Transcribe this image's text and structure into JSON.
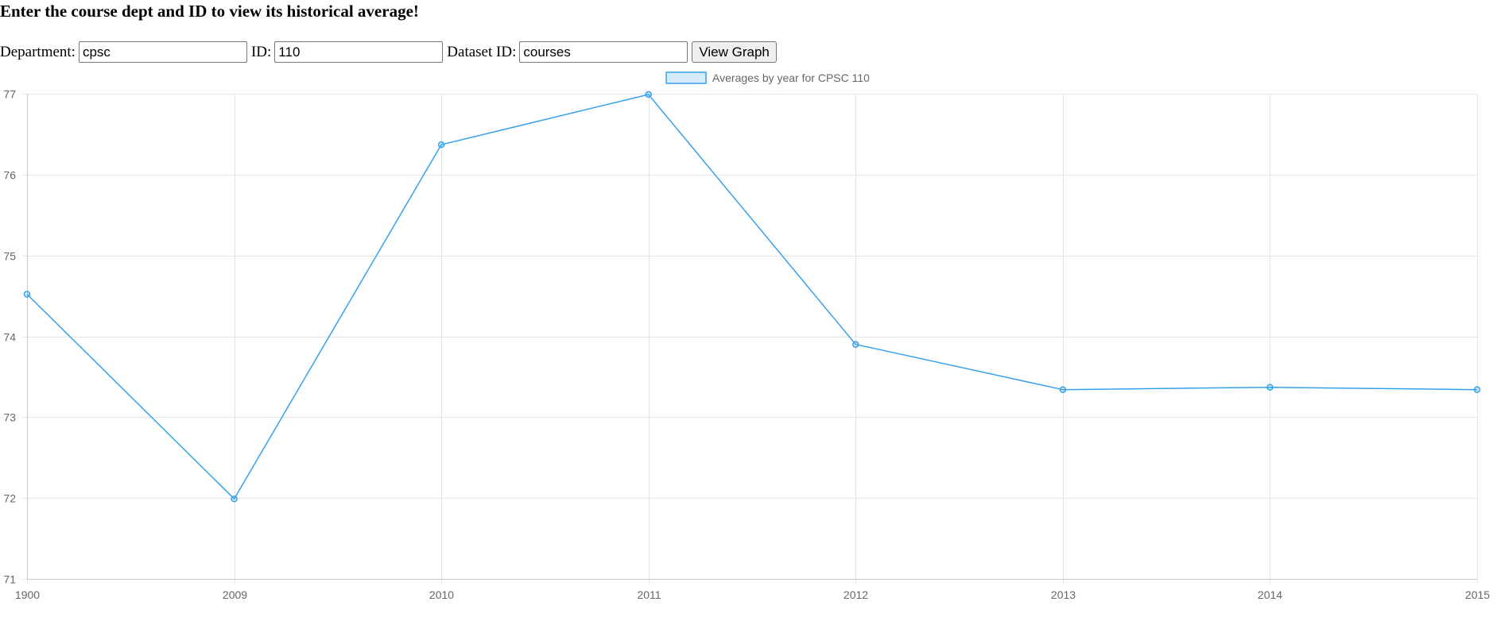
{
  "header": {
    "title": "Enter the course dept and ID to view its historical average!"
  },
  "form": {
    "department_label": "Department:",
    "department_value": "cpsc",
    "id_label": "ID:",
    "id_value": "110",
    "dataset_label": "Dataset ID:",
    "dataset_value": "courses",
    "submit_label": "View Graph"
  },
  "chart_data": {
    "type": "line",
    "title": "",
    "xlabel": "",
    "ylabel": "",
    "categories": [
      "1900",
      "2009",
      "2010",
      "2011",
      "2012",
      "2013",
      "2014",
      "2015"
    ],
    "series": [
      {
        "name": "Averages by year for CPSC 110",
        "values": [
          74.52,
          71.99,
          76.37,
          76.99,
          73.9,
          73.34,
          73.37,
          73.34
        ],
        "color": "#36a2eb",
        "fill": "rgba(54,162,235,0.2)"
      }
    ],
    "ylim": [
      71,
      77
    ],
    "yticks": [
      "71",
      "72",
      "73",
      "74",
      "75",
      "76",
      "77"
    ],
    "grid": true,
    "legend": "top-center",
    "colors": {
      "grid": "#e5e5e5",
      "axis": "#c8c8c8",
      "tick_text": "#666666"
    }
  }
}
